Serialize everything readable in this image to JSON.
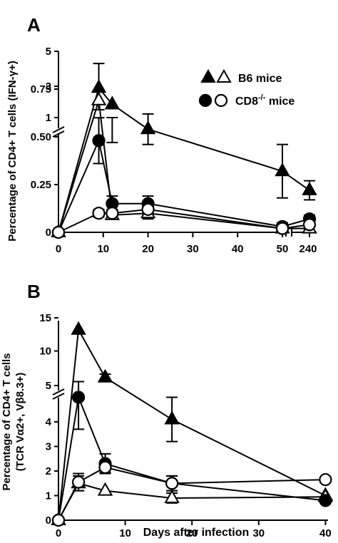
{
  "chart_data": [
    {
      "panel": "A",
      "type": "line",
      "ylabel": "Percentage of CD4+ T cells (IFN-γ+)",
      "xlabel": "",
      "x_ticks": [
        "0",
        "10",
        "20",
        "30",
        "40",
        "50",
        "240"
      ],
      "y_ticks": [
        "0",
        "0.25",
        "0.50",
        "0.75",
        "1",
        "3",
        "5"
      ],
      "y_axis_broken": true,
      "x_axis_broken": true,
      "legend": [
        {
          "markers": [
            "filled-triangle",
            "open-triangle"
          ],
          "label": "B6 mice"
        },
        {
          "markers": [
            "filled-circle",
            "open-circle"
          ],
          "label": "CD8-/- mice"
        }
      ],
      "series": [
        {
          "marker": "filled-triangle",
          "x": [
            0,
            9,
            12,
            20,
            50,
            240
          ],
          "y": [
            0.0,
            2.9,
            0.67,
            0.54,
            0.32,
            0.22
          ],
          "err": [
            0,
            1.4,
            0.2,
            0.08,
            0.14,
            0.05
          ]
        },
        {
          "marker": "open-triangle",
          "x": [
            0,
            9,
            12,
            20,
            50,
            240
          ],
          "y": [
            0.0,
            2.1,
            0.09,
            0.1,
            0.02,
            0.02
          ],
          "err": [
            0,
            0,
            0.02,
            0.03,
            0,
            0
          ]
        },
        {
          "marker": "filled-circle",
          "x": [
            0,
            9,
            12,
            20,
            50,
            240
          ],
          "y": [
            0.0,
            0.48,
            0.15,
            0.15,
            0.03,
            0.07
          ],
          "err": [
            0,
            0.12,
            0.04,
            0.04,
            0.02,
            0.02
          ]
        },
        {
          "marker": "open-circle",
          "x": [
            0,
            9,
            12,
            20,
            50,
            240
          ],
          "y": [
            0.0,
            0.1,
            0.1,
            0.12,
            0.02,
            0.04
          ],
          "err": [
            0,
            0.02,
            0.02,
            0.03,
            0,
            0
          ]
        }
      ]
    },
    {
      "panel": "B",
      "type": "line",
      "ylabel": "Percentage of CD4+ T cells (TCR Vα2+, Vβ8.3+)",
      "xlabel": "Days after infection",
      "x_ticks": [
        "0",
        "10",
        "20",
        "30",
        "40"
      ],
      "y_ticks": [
        "0",
        "1",
        "2",
        "3",
        "4",
        "5",
        "10",
        "15"
      ],
      "y_axis_broken": true,
      "series": [
        {
          "marker": "filled-triangle",
          "x": [
            0,
            3,
            7,
            17,
            40
          ],
          "y": [
            0,
            13.8,
            6.9,
            4.1,
            1.0
          ],
          "err": [
            0,
            0,
            0.5,
            0.9,
            0
          ]
        },
        {
          "marker": "open-triangle",
          "x": [
            0,
            3,
            7,
            17,
            40
          ],
          "y": [
            0,
            1.5,
            1.2,
            0.9,
            0.95
          ],
          "err": [
            0,
            0.3,
            0,
            0.2,
            0
          ]
        },
        {
          "marker": "filled-circle",
          "x": [
            0,
            3,
            7,
            17,
            40
          ],
          "y": [
            0,
            5.0,
            2.3,
            1.5,
            0.8
          ],
          "err": [
            0,
            1.3,
            0.4,
            0.3,
            0
          ]
        },
        {
          "marker": "open-circle",
          "x": [
            0,
            3,
            7,
            17,
            40
          ],
          "y": [
            0,
            1.55,
            2.15,
            1.5,
            1.65
          ],
          "err": [
            0,
            0.35,
            0.2,
            0.3,
            0
          ]
        }
      ]
    }
  ]
}
